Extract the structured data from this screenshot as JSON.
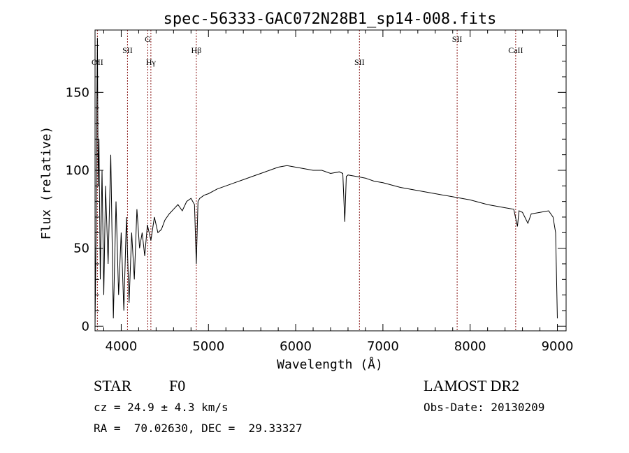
{
  "chart_data": {
    "type": "line",
    "title": "spec-56333-GAC072N28B1_sp14-008.fits",
    "xlabel": "Wavelength (Å)",
    "ylabel": "Flux (relative)",
    "xlim": [
      3700,
      9100
    ],
    "ylim": [
      -3,
      190
    ],
    "xticks": [
      "4000",
      "5000",
      "6000",
      "7000",
      "8000",
      "9000"
    ],
    "yticks": [
      "0",
      "50",
      "100",
      "150"
    ],
    "grid": false,
    "line_color": "#000000",
    "marker_color": "#8b1a1a",
    "lines": [
      {
        "label": "OII",
        "x": 3727
      },
      {
        "label": "SII",
        "x": 4072
      },
      {
        "label": "G",
        "x": 4305
      },
      {
        "label": "Hγ",
        "x": 4340
      },
      {
        "label": "Hβ",
        "x": 4861
      },
      {
        "label": "SII",
        "x": 6731
      },
      {
        "label": "SII",
        "x": 7851
      },
      {
        "label": "CaII",
        "x": 8522
      }
    ],
    "series": [
      {
        "x": [
          3700,
          3712,
          3720,
          3727,
          3735,
          3745,
          3760,
          3780,
          3800,
          3820,
          3850,
          3880,
          3910,
          3940,
          3970,
          4000,
          4030,
          4060,
          4090,
          4120,
          4150,
          4180,
          4210,
          4240,
          4270,
          4300,
          4340,
          4380,
          4420,
          4460,
          4500,
          4550,
          4600,
          4650,
          4700,
          4750,
          4800,
          4840,
          4861,
          4880,
          4900,
          4950,
          5000,
          5100,
          5200,
          5300,
          5400,
          5500,
          5600,
          5700,
          5800,
          5900,
          6000,
          6100,
          6200,
          6300,
          6400,
          6500,
          6540,
          6563,
          6580,
          6600,
          6700,
          6800,
          6900,
          7000,
          7200,
          7400,
          7600,
          7800,
          8000,
          8200,
          8400,
          8500,
          8542,
          8560,
          8600,
          8662,
          8700,
          8800,
          8900,
          8950,
          8980,
          9000
        ],
        "y": [
          0,
          60,
          140,
          185,
          90,
          120,
          30,
          100,
          20,
          90,
          40,
          110,
          5,
          80,
          20,
          60,
          10,
          70,
          15,
          60,
          30,
          75,
          50,
          60,
          45,
          65,
          55,
          70,
          60,
          62,
          68,
          72,
          75,
          78,
          74,
          80,
          82,
          78,
          40,
          80,
          82,
          84,
          85,
          88,
          90,
          92,
          94,
          96,
          98,
          100,
          102,
          103,
          102,
          101,
          100,
          100,
          98,
          99,
          98,
          67,
          96,
          97,
          96,
          95,
          93,
          92,
          89,
          87,
          85,
          83,
          81,
          78,
          76,
          75,
          64,
          74,
          73,
          66,
          72,
          73,
          74,
          70,
          60,
          5
        ]
      }
    ]
  },
  "footer": {
    "object_type": "STAR",
    "subclass": "F0",
    "survey": "LAMOST DR2",
    "cz": "cz = 24.9 ± 4.3 km/s",
    "obs_date": "Obs-Date: 20130209",
    "coords": "RA =  70.02630, DEC =  29.33327"
  }
}
